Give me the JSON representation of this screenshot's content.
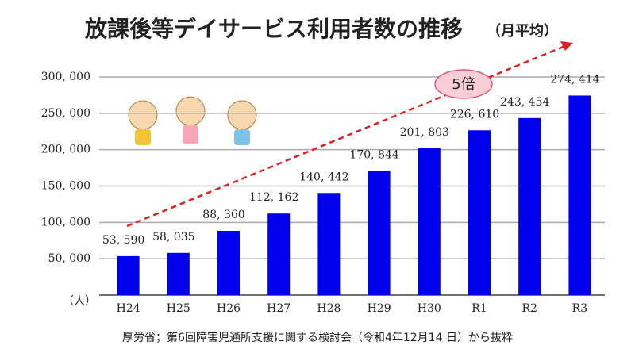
{
  "chart_data": {
    "type": "bar",
    "title": "放課後等デイサービス利用者数の推移",
    "subtitle": "（月平均）",
    "y_unit_label": "（人）",
    "annotation": "5倍",
    "source": "厚労省；第6回障害児通所支援に関する検討会（令和4年12月14 日）から抜粋",
    "categories": [
      "H24",
      "H25",
      "H26",
      "H27",
      "H28",
      "H29",
      "H30",
      "R1",
      "R2",
      "R3"
    ],
    "values": [
      53590,
      58035,
      88360,
      112162,
      140442,
      170844,
      201803,
      226610,
      243454,
      274414
    ],
    "value_labels": [
      "53, 590",
      "58, 035",
      "88, 360",
      "112, 162",
      "140, 442",
      "170, 844",
      "201, 803",
      "226, 610",
      "243, 454",
      "274, 414"
    ],
    "color": "#0000ee",
    "ylim": [
      0,
      300000
    ],
    "yticks": [
      {
        "value": 50000,
        "label": "50, 000"
      },
      {
        "value": 100000,
        "label": "100, 000"
      },
      {
        "value": 150000,
        "label": "150, 000"
      },
      {
        "value": 200000,
        "label": "200, 000"
      },
      {
        "value": 250000,
        "label": "250, 000"
      },
      {
        "value": 300000,
        "label": "300, 000"
      }
    ],
    "grid": true
  }
}
